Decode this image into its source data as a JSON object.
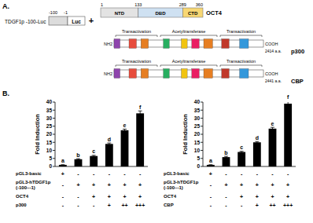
{
  "panel_a": {
    "label": "A.",
    "promoter": {
      "name": "TDGF1p -100-Luc",
      "start": "-100",
      "end": "-1",
      "reporter": "Luc"
    },
    "plus": "+",
    "oct4": {
      "name": "OCT4",
      "positions": [
        1,
        133,
        289,
        360
      ],
      "domains": [
        {
          "label": "NTD",
          "color": "#e3e3e3"
        },
        {
          "label": "DBD",
          "color": "#cfe1f2"
        },
        {
          "label": "CTD",
          "color": "#f7d774"
        }
      ]
    },
    "coactivators": [
      {
        "name": "p300",
        "length": "2414 a.a.",
        "n_term": "NH2",
        "c_term": "COOH",
        "regions": [
          "Transactivation",
          "Acetyltransferase",
          "Transactivation"
        ]
      },
      {
        "name": "CBP",
        "length": "2441 a.a.",
        "n_term": "NH2",
        "c_term": "COOH",
        "regions": [
          "Transactivation",
          "Acetyltransferase",
          "Transactivation"
        ]
      }
    ]
  },
  "panel_b_label": "B.",
  "chart_data": [
    {
      "type": "bar",
      "y_label": "Fold Induction",
      "categories": [
        null,
        null,
        null,
        null,
        null,
        null
      ],
      "values": [
        1,
        4.5,
        6.5,
        14,
        22.5,
        33
      ],
      "errors": [
        0.1,
        0.3,
        0.4,
        0.6,
        0.7,
        1.5
      ],
      "annotations": [
        "a",
        "b",
        "c",
        "d",
        "e",
        "f"
      ],
      "color": "#000000",
      "ylim": [
        0,
        40
      ],
      "yticks": [
        0,
        5,
        10,
        15,
        20,
        25,
        30,
        35,
        40
      ],
      "conditions": [
        {
          "label_lines": [
            "pGL3-basic"
          ],
          "values": [
            "+",
            "-",
            "-",
            "-",
            "-",
            "-"
          ]
        },
        {
          "label_lines": [
            "pGL3-hTDGF1p",
            "(-100~-1)"
          ],
          "values": [
            "-",
            "+",
            "+",
            "+",
            "+",
            "+"
          ]
        },
        {
          "label_lines": [
            "OCT4"
          ],
          "values": [
            "-",
            "-",
            "+",
            "+",
            "+",
            "+"
          ]
        },
        {
          "label_lines": [
            "p300"
          ],
          "values": [
            "-",
            "-",
            "-",
            "+",
            "++",
            "+++"
          ]
        }
      ]
    },
    {
      "type": "bar",
      "y_label": "Fold Induction",
      "categories": [
        null,
        null,
        null,
        null,
        null,
        null
      ],
      "values": [
        1,
        5.8,
        9,
        15,
        23.5,
        39
      ],
      "errors": [
        0.1,
        0.5,
        0.4,
        0.5,
        0.8,
        1.8
      ],
      "annotations": [
        "a",
        "b",
        "c",
        "d",
        "e",
        "f"
      ],
      "color": "#000000",
      "ylim": [
        0,
        40
      ],
      "yticks": [
        0,
        5,
        10,
        15,
        20,
        25,
        30,
        35,
        40
      ],
      "conditions": [
        {
          "label_lines": [
            "pGL3-basic"
          ],
          "values": [
            "+",
            "-",
            "-",
            "-",
            "-",
            "-"
          ]
        },
        {
          "label_lines": [
            "pGL3-hTDGF1p",
            "(-100~-1)"
          ],
          "values": [
            "-",
            "+",
            "+",
            "+",
            "+",
            "+"
          ]
        },
        {
          "label_lines": [
            "OCT4"
          ],
          "values": [
            "-",
            "-",
            "+",
            "+",
            "+",
            "+"
          ]
        },
        {
          "label_lines": [
            "CBP"
          ],
          "values": [
            "-",
            "-",
            "-",
            "+",
            "++",
            "+++"
          ]
        }
      ]
    }
  ]
}
